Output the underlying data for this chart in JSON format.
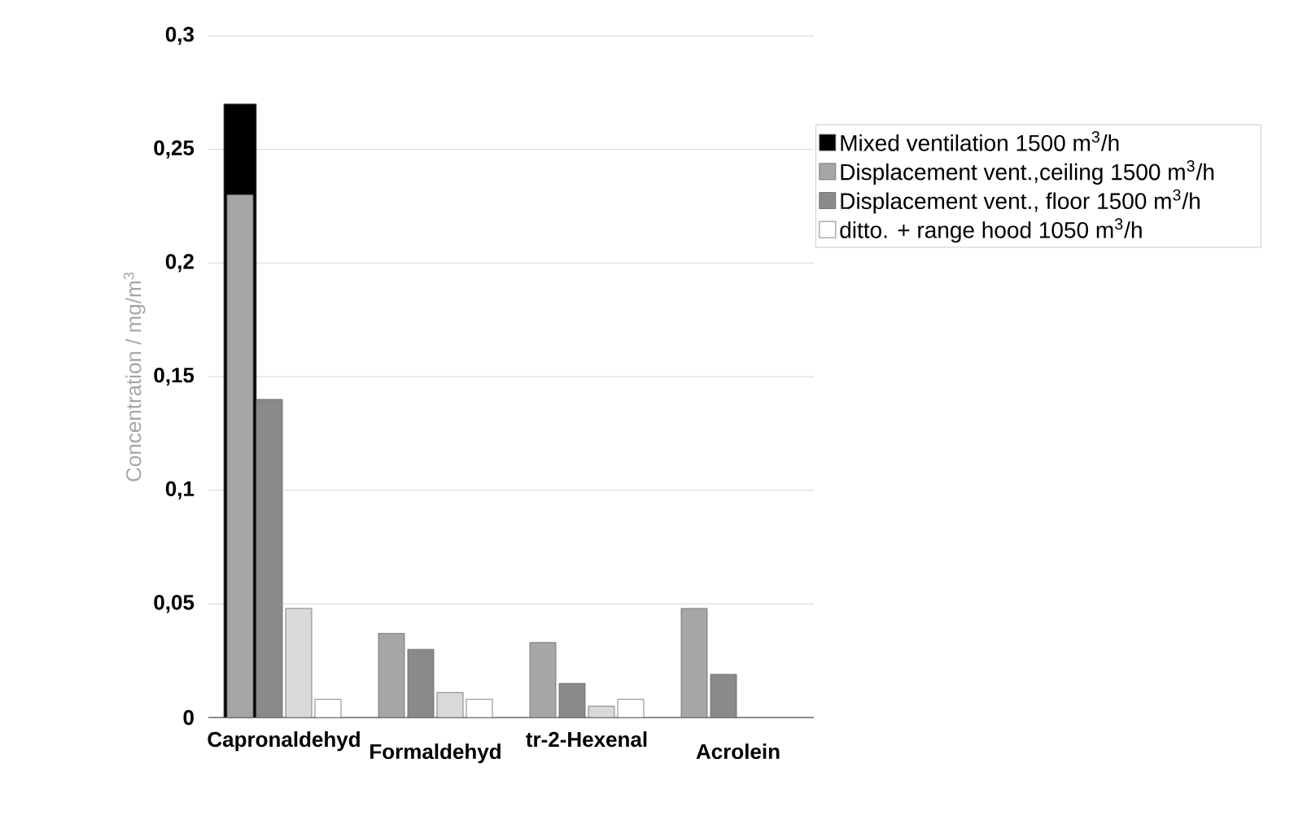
{
  "chart_data": {
    "type": "bar",
    "ylabel": "Concentration / mg/m$^{3}$",
    "categories": [
      "Capronaldehyd",
      "Formaldehyd",
      "tr-2-Hexenal",
      "Acrolein"
    ],
    "series": [
      {
        "name": "Mixed ventilation 1500 m$^{3}$/h",
        "color": "#000000",
        "values": [
          0.27,
          null,
          null,
          null
        ]
      },
      {
        "name": "Displacement vent.,ceiling 1500 m$^{3}$/h",
        "color": "#a6a6a6",
        "values": [
          0.23,
          0.037,
          0.033,
          0.048
        ]
      },
      {
        "name": "Displacement vent., floor 1500 m$^{3}$/h",
        "color": "#8a8a8a",
        "values": [
          0.14,
          0.03,
          0.015,
          0.019
        ]
      },
      {
        "color": "#d9d9d9",
        "values": [
          0.048,
          0.011,
          0.005,
          null
        ]
      },
      {
        "name": "ditto. + range hood 1050 m$^{3}$/h",
        "color": "#ffffff",
        "values": [
          0.008,
          0.008,
          0.008,
          null
        ]
      }
    ],
    "ylim": [
      0,
      0.3
    ],
    "yticks": [
      {
        "value": 0,
        "label": "0"
      },
      {
        "value": 0.05,
        "label": "0,05"
      },
      {
        "value": 0.1,
        "label": "0,1"
      },
      {
        "value": 0.15,
        "label": "0,15"
      },
      {
        "value": 0.2,
        "label": "0,2"
      },
      {
        "value": 0.25,
        "label": "0,25"
      },
      {
        "value": 0.3,
        "label": "0,3"
      }
    ],
    "grid": "y",
    "legend": "right"
  }
}
